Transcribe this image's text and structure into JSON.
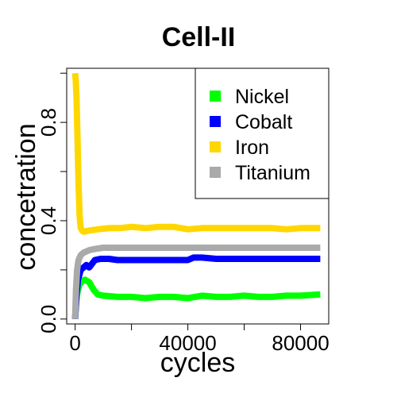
{
  "chart_data": {
    "type": "line",
    "title": "Cell-II",
    "xlabel": "cycles",
    "ylabel": "concetration",
    "xlim": [
      -3000,
      90000
    ],
    "ylim": [
      -0.02,
      1.02
    ],
    "xticks": [
      0,
      20000,
      40000,
      60000,
      80000
    ],
    "xtick_labels": [
      "0",
      "",
      "40000",
      "",
      "80000"
    ],
    "yticks": [
      0.0,
      0.2,
      0.4,
      0.6,
      0.8,
      1.0
    ],
    "ytick_labels": [
      "0.0",
      "",
      "0.4",
      "",
      "0.8",
      ""
    ],
    "grid": false,
    "legend_position": "top-right",
    "series": [
      {
        "name": "Nickel",
        "color": "#00ff00",
        "x": [
          0,
          300,
          800,
          1500,
          2500,
          3500,
          5000,
          6500,
          8000,
          10000,
          15000,
          20000,
          25000,
          30000,
          35000,
          40000,
          45000,
          50000,
          55000,
          60000,
          65000,
          70000,
          75000,
          80000,
          87000
        ],
        "y": [
          0.0,
          0.06,
          0.11,
          0.14,
          0.155,
          0.16,
          0.15,
          0.12,
          0.1,
          0.095,
          0.09,
          0.09,
          0.085,
          0.09,
          0.09,
          0.085,
          0.095,
          0.09,
          0.09,
          0.095,
          0.09,
          0.09,
          0.095,
          0.095,
          0.1
        ]
      },
      {
        "name": "Cobalt",
        "color": "#0000ff",
        "x": [
          0,
          500,
          1000,
          2000,
          3000,
          4000,
          5000,
          7000,
          9000,
          12000,
          15000,
          20000,
          30000,
          40000,
          42000,
          45000,
          50000,
          60000,
          70000,
          80000,
          87000
        ],
        "y": [
          0.0,
          0.1,
          0.16,
          0.2,
          0.21,
          0.22,
          0.21,
          0.24,
          0.245,
          0.245,
          0.24,
          0.24,
          0.24,
          0.24,
          0.25,
          0.25,
          0.245,
          0.245,
          0.245,
          0.245,
          0.245
        ]
      },
      {
        "name": "Iron",
        "color": "#ffd700",
        "x": [
          0,
          200,
          500,
          800,
          1200,
          1600,
          2000,
          2500,
          3000,
          5000,
          8000,
          12000,
          16000,
          20000,
          25000,
          30000,
          35000,
          40000,
          45000,
          50000,
          55000,
          60000,
          65000,
          70000,
          75000,
          80000,
          87000
        ],
        "y": [
          1.0,
          0.97,
          0.9,
          0.75,
          0.55,
          0.42,
          0.37,
          0.36,
          0.355,
          0.36,
          0.365,
          0.37,
          0.37,
          0.375,
          0.37,
          0.375,
          0.375,
          0.365,
          0.37,
          0.37,
          0.37,
          0.37,
          0.37,
          0.37,
          0.365,
          0.37,
          0.37
        ]
      },
      {
        "name": "Titanium",
        "color": "#aaaaaa",
        "x": [
          0,
          300,
          700,
          1200,
          2000,
          3000,
          4000,
          5000,
          7000,
          10000,
          15000,
          20000,
          30000,
          40000,
          50000,
          60000,
          70000,
          80000,
          87000
        ],
        "y": [
          0.0,
          0.12,
          0.2,
          0.24,
          0.26,
          0.27,
          0.275,
          0.28,
          0.285,
          0.29,
          0.29,
          0.29,
          0.29,
          0.29,
          0.29,
          0.29,
          0.29,
          0.29,
          0.29
        ]
      }
    ]
  }
}
